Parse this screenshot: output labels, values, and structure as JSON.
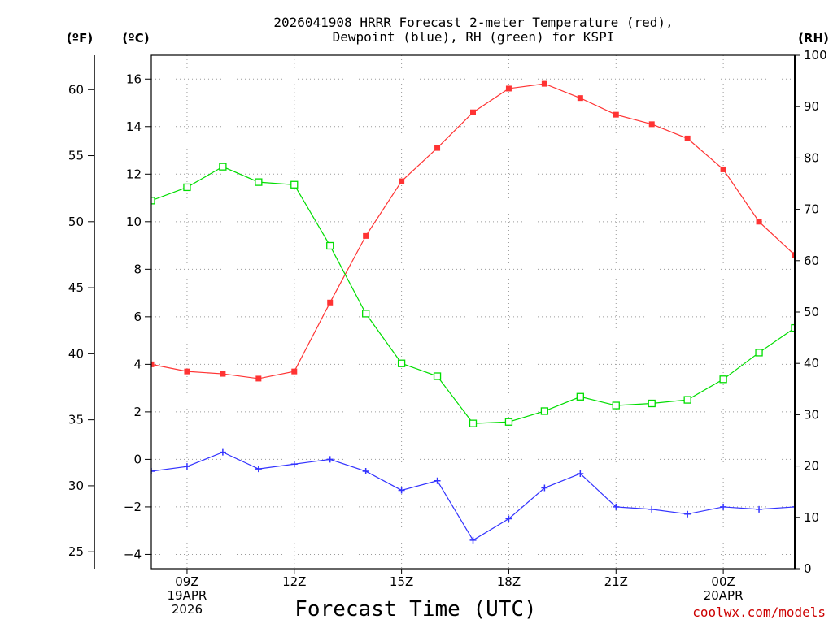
{
  "chart_data": {
    "type": "line",
    "title_lines": [
      "2026041908 HRRR Forecast 2-meter Temperature (red),",
      "Dewpoint (blue), RH (green) for KSPI"
    ],
    "xlabel": "Forecast Time (UTC)",
    "credit": "coolwx.com/models",
    "hours": [
      8,
      9,
      10,
      11,
      12,
      13,
      14,
      15,
      16,
      17,
      18,
      19,
      20,
      21,
      22,
      23,
      24,
      25,
      26
    ],
    "xlim": [
      8,
      26
    ],
    "x_ticks": [
      {
        "hour": 9,
        "lines": [
          "09Z",
          "19APR",
          "2026"
        ]
      },
      {
        "hour": 12,
        "lines": [
          "12Z"
        ]
      },
      {
        "hour": 15,
        "lines": [
          "15Z"
        ]
      },
      {
        "hour": 18,
        "lines": [
          "18Z"
        ]
      },
      {
        "hour": 21,
        "lines": [
          "21Z"
        ]
      },
      {
        "hour": 24,
        "lines": [
          "00Z",
          "20APR"
        ]
      }
    ],
    "axes": {
      "fahrenheit": {
        "header": "(ºF)",
        "ticks": [
          "60",
          "55",
          "50",
          "45",
          "40",
          "35",
          "30",
          "25"
        ]
      },
      "celsius": {
        "header": "(ºC)",
        "ylim": [
          -4.6,
          17
        ],
        "ticks": [
          "16",
          "14",
          "12",
          "10",
          "8",
          "6",
          "4",
          "2",
          "0",
          "−2",
          "−4"
        ]
      },
      "rh": {
        "header": "(RH)",
        "ylim": [
          0,
          100
        ],
        "ticks": [
          "100",
          "90",
          "80",
          "70",
          "60",
          "50",
          "40",
          "30",
          "20",
          "10",
          "0"
        ]
      }
    },
    "series": [
      {
        "name": "Temperature",
        "unit": "C",
        "color": "#ff3333",
        "marker": "filled-square",
        "values": [
          4.0,
          3.7,
          3.6,
          3.4,
          3.7,
          6.6,
          9.4,
          11.7,
          13.1,
          14.6,
          15.6,
          15.8,
          15.2,
          14.5,
          14.1,
          13.5,
          12.2,
          10.0,
          8.6
        ]
      },
      {
        "name": "Dewpoint",
        "unit": "C",
        "color": "#3333ff",
        "marker": "plus",
        "values": [
          -0.5,
          -0.3,
          0.3,
          -0.4,
          -0.2,
          0.0,
          -0.5,
          -1.3,
          -0.9,
          -3.4,
          -2.5,
          -1.2,
          -0.6,
          -2.0,
          -2.1,
          -2.3,
          -2.0,
          -2.1,
          -2.0
        ]
      },
      {
        "name": "Relative Humidity",
        "unit": "%",
        "color": "#00dd00",
        "marker": "open-square",
        "values": [
          71.7,
          74.3,
          78.3,
          75.3,
          74.8,
          62.9,
          49.7,
          40.0,
          37.5,
          28.3,
          28.6,
          30.7,
          33.5,
          31.8,
          32.2,
          32.9,
          36.9,
          42.1,
          46.9
        ]
      }
    ]
  }
}
